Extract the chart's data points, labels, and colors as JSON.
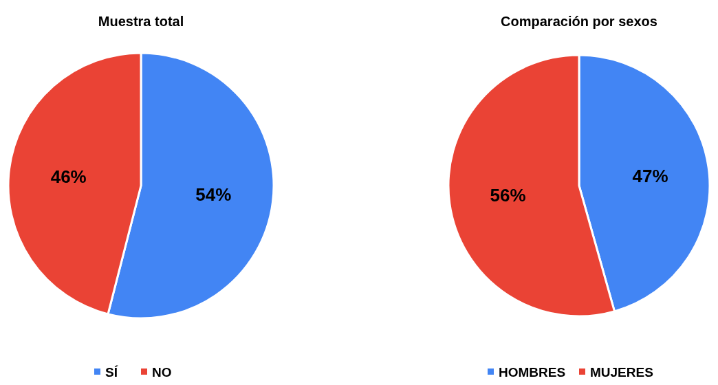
{
  "chart_data": [
    {
      "type": "pie",
      "title": "Muestra total",
      "categories": [
        "SÍ",
        "NO"
      ],
      "values": [
        54,
        46
      ],
      "value_labels": [
        "54%",
        "46%"
      ],
      "colors": [
        "#4285f4",
        "#ea4335"
      ],
      "legend": "bottom"
    },
    {
      "type": "pie",
      "title": "Comparación por sexos",
      "categories": [
        "HOMBRES",
        "MUJERES"
      ],
      "values": [
        47,
        56
      ],
      "value_labels": [
        "47%",
        "56%"
      ],
      "colors": [
        "#4285f4",
        "#ea4335"
      ],
      "legend": "bottom"
    }
  ]
}
